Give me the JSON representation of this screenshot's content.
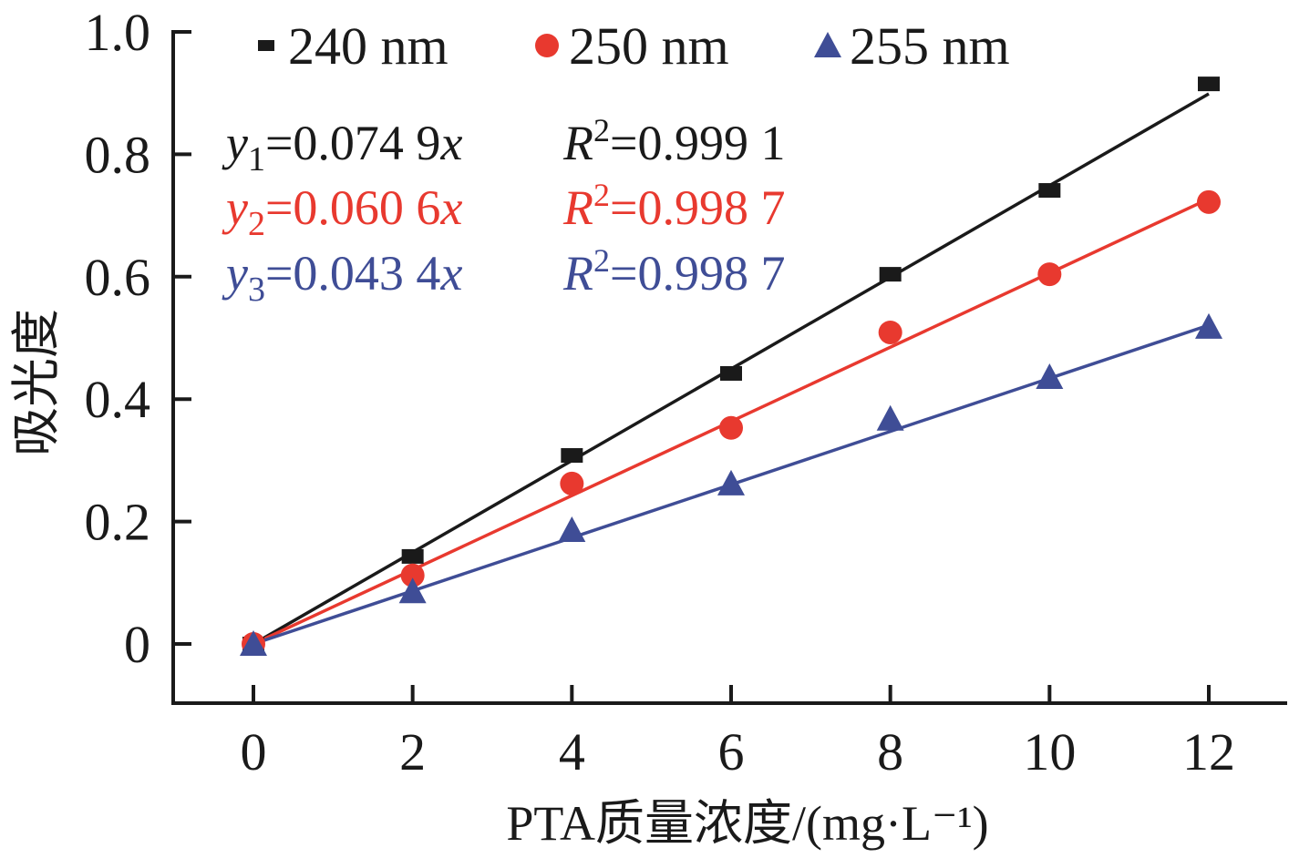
{
  "chart_data": {
    "type": "scatter",
    "title": "",
    "xlabel": "PTA质量浓度/(mg·L⁻¹)",
    "ylabel": "吸光度",
    "xlim": [
      -1,
      13
    ],
    "ylim": [
      -0.1,
      1.0
    ],
    "x_ticks": [
      0,
      2,
      4,
      6,
      8,
      10,
      12
    ],
    "x_tick_labels": [
      "0",
      "2",
      "4",
      "6",
      "8",
      "10",
      "12"
    ],
    "y_ticks": [
      0,
      0.2,
      0.4,
      0.6,
      0.8,
      1.0
    ],
    "y_tick_labels": [
      "0",
      "0.2",
      "0.4",
      "0.6",
      "0.8",
      "1.0"
    ],
    "grid": false,
    "legend_position": "top",
    "x": [
      0,
      2,
      4,
      6,
      8,
      10,
      12
    ],
    "series": [
      {
        "name": "240 nm",
        "marker": "square",
        "color": "#1a1a1a",
        "values": [
          0.0,
          0.143,
          0.308,
          0.442,
          0.604,
          0.741,
          0.915
        ],
        "fit": {
          "slope": 0.0749,
          "r2": 0.9991
        }
      },
      {
        "name": "250 nm",
        "marker": "circle",
        "color": "#e8392f",
        "values": [
          0.0,
          0.112,
          0.262,
          0.353,
          0.509,
          0.604,
          0.722
        ],
        "fit": {
          "slope": 0.0606,
          "r2": 0.9987
        }
      },
      {
        "name": "255 nm",
        "marker": "triangle",
        "color": "#3f4d96",
        "values": [
          0.0,
          0.086,
          0.186,
          0.262,
          0.368,
          0.436,
          0.518
        ],
        "fit": {
          "slope": 0.0434,
          "r2": 0.9987
        }
      }
    ],
    "annotations": [
      {
        "y_var": "y",
        "sub": "1",
        "eq": "=0.074 9",
        "xvar": "x",
        "r_var": "R",
        "sup": "2",
        "r_val": "=0.999 1",
        "color": "#1a1a1a"
      },
      {
        "y_var": "y",
        "sub": "2",
        "eq": "=0.060 6",
        "xvar": "x",
        "r_var": "R",
        "sup": "2",
        "r_val": "=0.998 7",
        "color": "#e8392f"
      },
      {
        "y_var": "y",
        "sub": "3",
        "eq": "=0.043 4",
        "xvar": "x",
        "r_var": "R",
        "sup": "2",
        "r_val": "=0.998 7",
        "color": "#3f4d96"
      }
    ]
  }
}
